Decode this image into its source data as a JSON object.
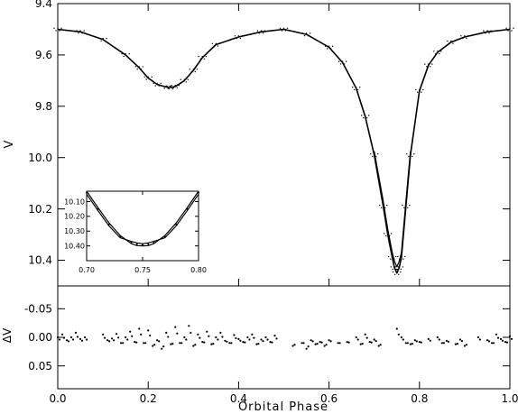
{
  "chart_data": [
    {
      "type": "line",
      "panel": "main",
      "xlabel": "Orbital Phase",
      "ylabel": "V",
      "xlim": [
        0.0,
        1.0
      ],
      "ylim": [
        9.4,
        10.5
      ],
      "y_inverted": true,
      "x_ticks": [
        "0.0",
        "0.2",
        "0.4",
        "0.6",
        "0.8",
        "1.0"
      ],
      "y_ticks": [
        "9.4",
        "9.6",
        "9.8",
        "10.0",
        "10.2",
        "10.4"
      ],
      "series": [
        {
          "style": "model curve",
          "x": [
            0.0,
            0.05,
            0.1,
            0.15,
            0.18,
            0.2,
            0.22,
            0.24,
            0.25,
            0.26,
            0.28,
            0.3,
            0.32,
            0.35,
            0.4,
            0.45,
            0.5,
            0.55,
            0.6,
            0.63,
            0.66,
            0.68,
            0.7,
            0.72,
            0.73,
            0.74,
            0.745,
            0.75,
            0.755,
            0.76,
            0.77,
            0.78,
            0.8,
            0.82,
            0.84,
            0.87,
            0.9,
            0.95,
            1.0
          ],
          "y": [
            9.5,
            9.51,
            9.54,
            9.6,
            9.65,
            9.69,
            9.715,
            9.725,
            9.727,
            9.723,
            9.7,
            9.66,
            9.61,
            9.56,
            9.53,
            9.51,
            9.5,
            9.52,
            9.57,
            9.63,
            9.73,
            9.84,
            9.99,
            10.19,
            10.3,
            10.39,
            10.43,
            10.45,
            10.43,
            10.39,
            10.19,
            9.99,
            9.74,
            9.64,
            9.59,
            9.55,
            9.53,
            9.51,
            9.5
          ]
        },
        {
          "style": "model curve (second)",
          "x": [
            0.7,
            0.72,
            0.73,
            0.74,
            0.745,
            0.75,
            0.755,
            0.76,
            0.77,
            0.78
          ],
          "y": [
            9.975,
            10.17,
            10.28,
            10.37,
            10.405,
            10.425,
            10.405,
            10.37,
            10.17,
            9.975
          ]
        }
      ]
    },
    {
      "type": "line",
      "panel": "inset",
      "xlim": [
        0.7,
        0.8
      ],
      "ylim": [
        10.03,
        10.5
      ],
      "y_inverted": true,
      "x_ticks": [
        "0.70",
        "0.75",
        "0.80"
      ],
      "y_ticks": [
        "10.10",
        "10.20",
        "10.30",
        "10.40"
      ],
      "series": [
        {
          "x": [
            0.7,
            0.71,
            0.72,
            0.73,
            0.74,
            0.745,
            0.75,
            0.755,
            0.76,
            0.77,
            0.78,
            0.79,
            0.8
          ],
          "y": [
            10.03,
            10.14,
            10.245,
            10.33,
            10.385,
            10.398,
            10.4,
            10.398,
            10.385,
            10.33,
            10.245,
            10.14,
            10.03
          ]
        },
        {
          "x": [
            0.7,
            0.71,
            0.72,
            0.73,
            0.74,
            0.745,
            0.75,
            0.755,
            0.76,
            0.77,
            0.78,
            0.79,
            0.8
          ],
          "y": [
            10.05,
            10.16,
            10.265,
            10.345,
            10.37,
            10.38,
            10.385,
            10.38,
            10.37,
            10.345,
            10.265,
            10.16,
            10.05
          ]
        }
      ]
    },
    {
      "type": "scatter",
      "panel": "residuals",
      "xlabel": "Orbital Phase",
      "ylabel": "ΔV",
      "xlim": [
        0.0,
        1.0
      ],
      "ylim": [
        -0.09,
        0.09
      ],
      "y_inverted": true,
      "x_ticks": [
        "0.0",
        "0.2",
        "0.4",
        "0.6",
        "0.8",
        "1.0"
      ],
      "y_ticks": [
        "-0.05",
        "0.00",
        "0.05"
      ],
      "series": [
        {
          "x": [
            0.0,
            0.01,
            0.02,
            0.03,
            0.04,
            0.05,
            0.06,
            0.1,
            0.11,
            0.12,
            0.13,
            0.14,
            0.15,
            0.16,
            0.17,
            0.18,
            0.19,
            0.2,
            0.21,
            0.22,
            0.23,
            0.24,
            0.25,
            0.26,
            0.27,
            0.28,
            0.29,
            0.3,
            0.31,
            0.32,
            0.33,
            0.34,
            0.35,
            0.36,
            0.37,
            0.38,
            0.39,
            0.4,
            0.41,
            0.42,
            0.43,
            0.44,
            0.45,
            0.46,
            0.47,
            0.48,
            0.52,
            0.54,
            0.55,
            0.56,
            0.57,
            0.58,
            0.59,
            0.6,
            0.62,
            0.64,
            0.66,
            0.67,
            0.68,
            0.69,
            0.7,
            0.71,
            0.75,
            0.76,
            0.77,
            0.78,
            0.79,
            0.8,
            0.82,
            0.84,
            0.85,
            0.86,
            0.88,
            0.89,
            0.9,
            0.93,
            0.95,
            0.96,
            0.97,
            0.98,
            0.99,
            1.0
          ],
          "y": [
            0.0,
            -0.005,
            0.005,
            0.0,
            -0.008,
            0.003,
            0.0,
            -0.005,
            0.005,
            0.002,
            -0.006,
            0.01,
            0.0,
            -0.01,
            0.008,
            -0.015,
            0.01,
            -0.012,
            0.015,
            0.005,
            0.02,
            -0.008,
            0.012,
            -0.018,
            0.01,
            0.0,
            -0.02,
            0.015,
            -0.005,
            0.008,
            -0.01,
            0.012,
            0.0,
            -0.008,
            0.006,
            0.01,
            -0.004,
            0.003,
            0.008,
            0.0,
            -0.005,
            0.012,
            0.004,
            0.0,
            0.008,
            -0.003,
            0.015,
            0.01,
            0.02,
            0.005,
            0.012,
            0.008,
            0.015,
            0.005,
            0.01,
            0.008,
            0.0,
            0.012,
            -0.005,
            0.008,
            0.004,
            0.015,
            -0.015,
            0.0,
            0.01,
            0.012,
            0.005,
            0.008,
            0.003,
            0.0,
            0.01,
            0.006,
            0.012,
            0.004,
            0.015,
            0.0,
            0.005,
            0.01,
            -0.005,
            0.003,
            0.008,
            -0.002
          ]
        }
      ]
    }
  ]
}
